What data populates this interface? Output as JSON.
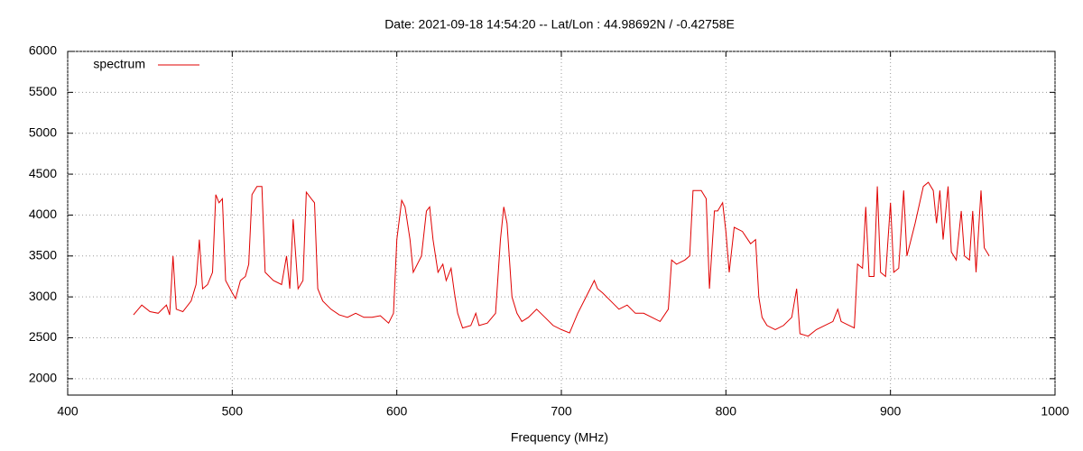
{
  "chart_data": {
    "type": "line",
    "title": "Date: 2021-09-18 14:54:20  --  Lat/Lon : 44.98692N / -0.42758E",
    "x_label": "Frequency (MHz)",
    "x": [
      440,
      445,
      450,
      455,
      460,
      462,
      464,
      466,
      470,
      475,
      478,
      480,
      482,
      485,
      488,
      490,
      492,
      494,
      496,
      500,
      502,
      505,
      508,
      510,
      512,
      515,
      518,
      520,
      525,
      530,
      533,
      535,
      537,
      540,
      543,
      545,
      548,
      550,
      552,
      555,
      560,
      565,
      570,
      575,
      580,
      585,
      590,
      595,
      598,
      600,
      603,
      605,
      608,
      610,
      615,
      618,
      620,
      622,
      625,
      628,
      630,
      633,
      635,
      637,
      640,
      645,
      648,
      650,
      655,
      660,
      663,
      665,
      667,
      670,
      673,
      676,
      680,
      685,
      690,
      695,
      700,
      705,
      710,
      715,
      720,
      722,
      725,
      730,
      735,
      740,
      745,
      750,
      755,
      760,
      765,
      767,
      770,
      775,
      778,
      780,
      785,
      788,
      790,
      793,
      795,
      798,
      800,
      802,
      805,
      810,
      815,
      818,
      820,
      822,
      825,
      830,
      835,
      840,
      843,
      845,
      850,
      855,
      860,
      865,
      868,
      870,
      875,
      878,
      880,
      883,
      885,
      887,
      890,
      892,
      894,
      897,
      900,
      902,
      905,
      908,
      910,
      915,
      920,
      923,
      926,
      928,
      930,
      932,
      935,
      937,
      940,
      943,
      945,
      948,
      950,
      952,
      955,
      957,
      960
    ],
    "series": [
      {
        "name": "spectrum",
        "color": "#e00000",
        "values": [
          2780,
          2900,
          2820,
          2800,
          2900,
          2780,
          3500,
          2850,
          2820,
          2950,
          3150,
          3700,
          3100,
          3150,
          3300,
          4250,
          4150,
          4200,
          3200,
          3050,
          2980,
          3200,
          3250,
          3400,
          4250,
          4350,
          4350,
          3300,
          3200,
          3150,
          3500,
          3100,
          3950,
          3100,
          3200,
          4280,
          4200,
          4150,
          3100,
          2950,
          2850,
          2780,
          2750,
          2800,
          2750,
          2750,
          2770,
          2680,
          2800,
          3700,
          4180,
          4100,
          3700,
          3300,
          3500,
          4050,
          4100,
          3700,
          3300,
          3400,
          3200,
          3350,
          3050,
          2800,
          2620,
          2650,
          2800,
          2650,
          2680,
          2800,
          3700,
          4100,
          3900,
          3000,
          2800,
          2700,
          2750,
          2850,
          2750,
          2650,
          2600,
          2560,
          2800,
          3000,
          3200,
          3100,
          3050,
          2950,
          2850,
          2900,
          2800,
          2800,
          2750,
          2700,
          2850,
          3450,
          3400,
          3450,
          3500,
          4300,
          4300,
          4200,
          3100,
          4050,
          4050,
          4150,
          3800,
          3300,
          3850,
          3800,
          3650,
          3700,
          3000,
          2750,
          2650,
          2600,
          2650,
          2750,
          3100,
          2550,
          2520,
          2600,
          2650,
          2700,
          2850,
          2700,
          2650,
          2620,
          3400,
          3350,
          4100,
          3250,
          3250,
          4350,
          3300,
          3250,
          4150,
          3300,
          3350,
          4300,
          3500,
          3900,
          4350,
          4400,
          4300,
          3900,
          4300,
          3700,
          4350,
          3550,
          3450,
          4050,
          3500,
          3450,
          4050,
          3300,
          4300,
          3600,
          3500
        ]
      }
    ],
    "xlim": [
      400,
      1000
    ],
    "xticks": [
      400,
      500,
      600,
      700,
      800,
      900,
      1000
    ],
    "ylim": [
      1800,
      6000
    ],
    "yticks": [
      2000,
      2500,
      3000,
      3500,
      4000,
      4500,
      5000,
      5500,
      6000
    ],
    "grid": true,
    "legend": "top-left"
  }
}
